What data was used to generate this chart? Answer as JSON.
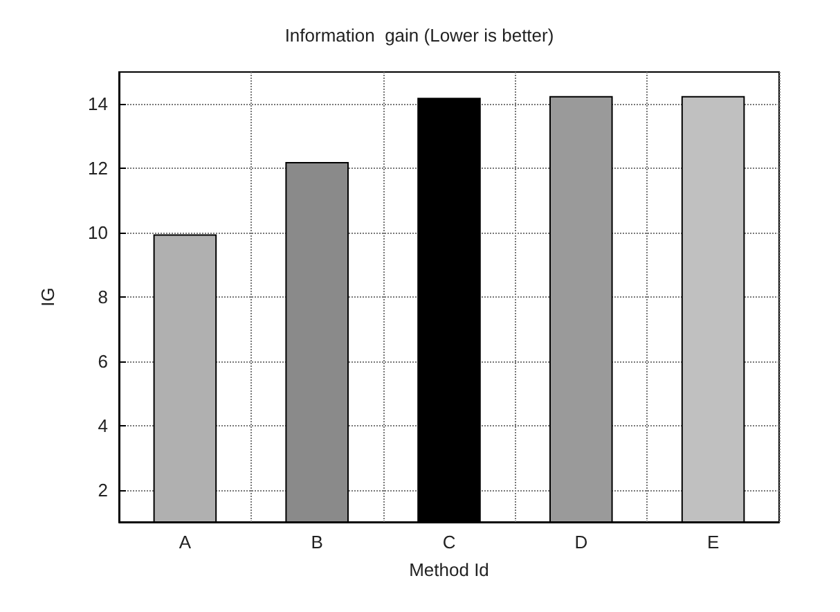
{
  "chart_data": {
    "type": "bar",
    "title": "Information  gain (Lower is better)",
    "xlabel": "Method Id",
    "ylabel": "IG",
    "categories": [
      "A",
      "B",
      "C",
      "D",
      "E"
    ],
    "values": [
      9.95,
      12.2,
      14.2,
      14.25,
      14.25
    ],
    "colors": [
      "#b0b0b0",
      "#8a8a8a",
      "#000000",
      "#9a9a9a",
      "#c0c0c0"
    ],
    "ylim": [
      1,
      15
    ],
    "yticks": [
      2,
      4,
      6,
      8,
      10,
      12,
      14
    ],
    "grid": true
  }
}
